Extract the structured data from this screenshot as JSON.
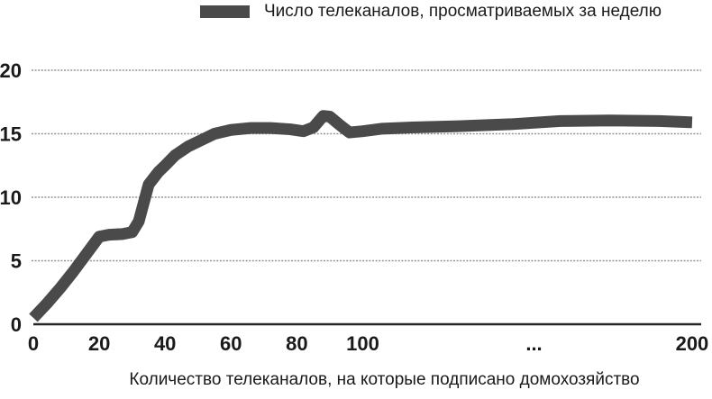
{
  "chart_data": {
    "type": "line",
    "title": "",
    "legend_position": "top",
    "grid": "horizontal-dotted",
    "xlabel": "Количество телеканалов, на которые подписано домохозяйство",
    "ylabel": "",
    "xlim": [
      0,
      200
    ],
    "ylim": [
      0,
      20
    ],
    "y_ticks": [
      0,
      5,
      10,
      15,
      20
    ],
    "x_ticks": [
      {
        "v": 0,
        "label": "0"
      },
      {
        "v": 20,
        "label": "20"
      },
      {
        "v": 40,
        "label": "40"
      },
      {
        "v": 60,
        "label": "60"
      },
      {
        "v": 80,
        "label": "80"
      },
      {
        "v": 100,
        "label": "100"
      },
      {
        "v": 152,
        "label": "..."
      },
      {
        "v": 200,
        "label": "200"
      }
    ],
    "series": [
      {
        "name": "Число телеканалов, просматриваемых за неделю",
        "points": [
          [
            0,
            0.5
          ],
          [
            4,
            1.6
          ],
          [
            8,
            2.8
          ],
          [
            12,
            4.1
          ],
          [
            16,
            5.5
          ],
          [
            20,
            6.9
          ],
          [
            23,
            7.05
          ],
          [
            27,
            7.1
          ],
          [
            30,
            7.25
          ],
          [
            32,
            8.1
          ],
          [
            35,
            11.0
          ],
          [
            38,
            12.0
          ],
          [
            40,
            12.5
          ],
          [
            43,
            13.3
          ],
          [
            47,
            14.0
          ],
          [
            51,
            14.5
          ],
          [
            55,
            15.0
          ],
          [
            60,
            15.3
          ],
          [
            66,
            15.45
          ],
          [
            72,
            15.45
          ],
          [
            78,
            15.35
          ],
          [
            82,
            15.2
          ],
          [
            85,
            15.5
          ],
          [
            88,
            16.4
          ],
          [
            90,
            16.35
          ],
          [
            93,
            15.7
          ],
          [
            96,
            15.1
          ],
          [
            100,
            15.2
          ],
          [
            106,
            15.4
          ],
          [
            115,
            15.5
          ],
          [
            130,
            15.6
          ],
          [
            145,
            15.75
          ],
          [
            160,
            16.0
          ],
          [
            175,
            16.05
          ],
          [
            190,
            16.0
          ],
          [
            200,
            15.9
          ]
        ]
      }
    ],
    "colors": {
      "line": "#4a4a4a",
      "grid": "#949494",
      "axis": "#262626",
      "text": "#1a1a1a"
    }
  }
}
